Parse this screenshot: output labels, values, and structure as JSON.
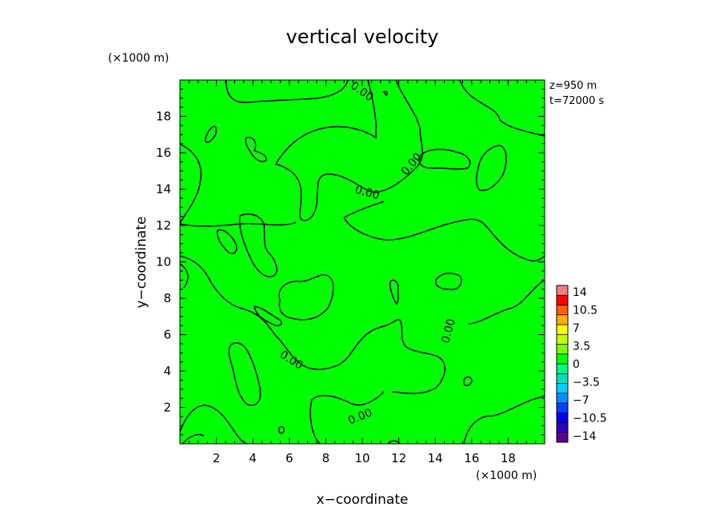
{
  "chart_data": {
    "type": "heatmap",
    "title": "vertical velocity",
    "xlabel": "x−coordinate",
    "ylabel": "y−coordinate",
    "x_unit": "(×1000 m)",
    "y_unit": "(×1000 m)",
    "xlim": [
      0,
      20
    ],
    "ylim": [
      0,
      20
    ],
    "x_ticks": [
      "2",
      "4",
      "6",
      "8",
      "10",
      "12",
      "14",
      "16",
      "18"
    ],
    "y_ticks": [
      "2",
      "4",
      "6",
      "8",
      "10",
      "12",
      "14",
      "16",
      "18"
    ],
    "field_color": "#00ff00",
    "info": [
      "z=950 m",
      "t=72000 s"
    ],
    "contour_level_label": "0.00",
    "colorbar": {
      "tick_labels": [
        "14",
        "10.5",
        "7",
        "3.5",
        "0",
        "−3.5",
        "−7",
        "−10.5",
        "−14"
      ],
      "colors": [
        "#f08080",
        "#ff0000",
        "#ff6000",
        "#ffb000",
        "#ffff00",
        "#c0ff00",
        "#80ff00",
        "#00ff00",
        "#00ff80",
        "#00e0c0",
        "#00d0ff",
        "#0090ff",
        "#0040ff",
        "#0000ff",
        "#3000c0",
        "#600090"
      ]
    }
  }
}
